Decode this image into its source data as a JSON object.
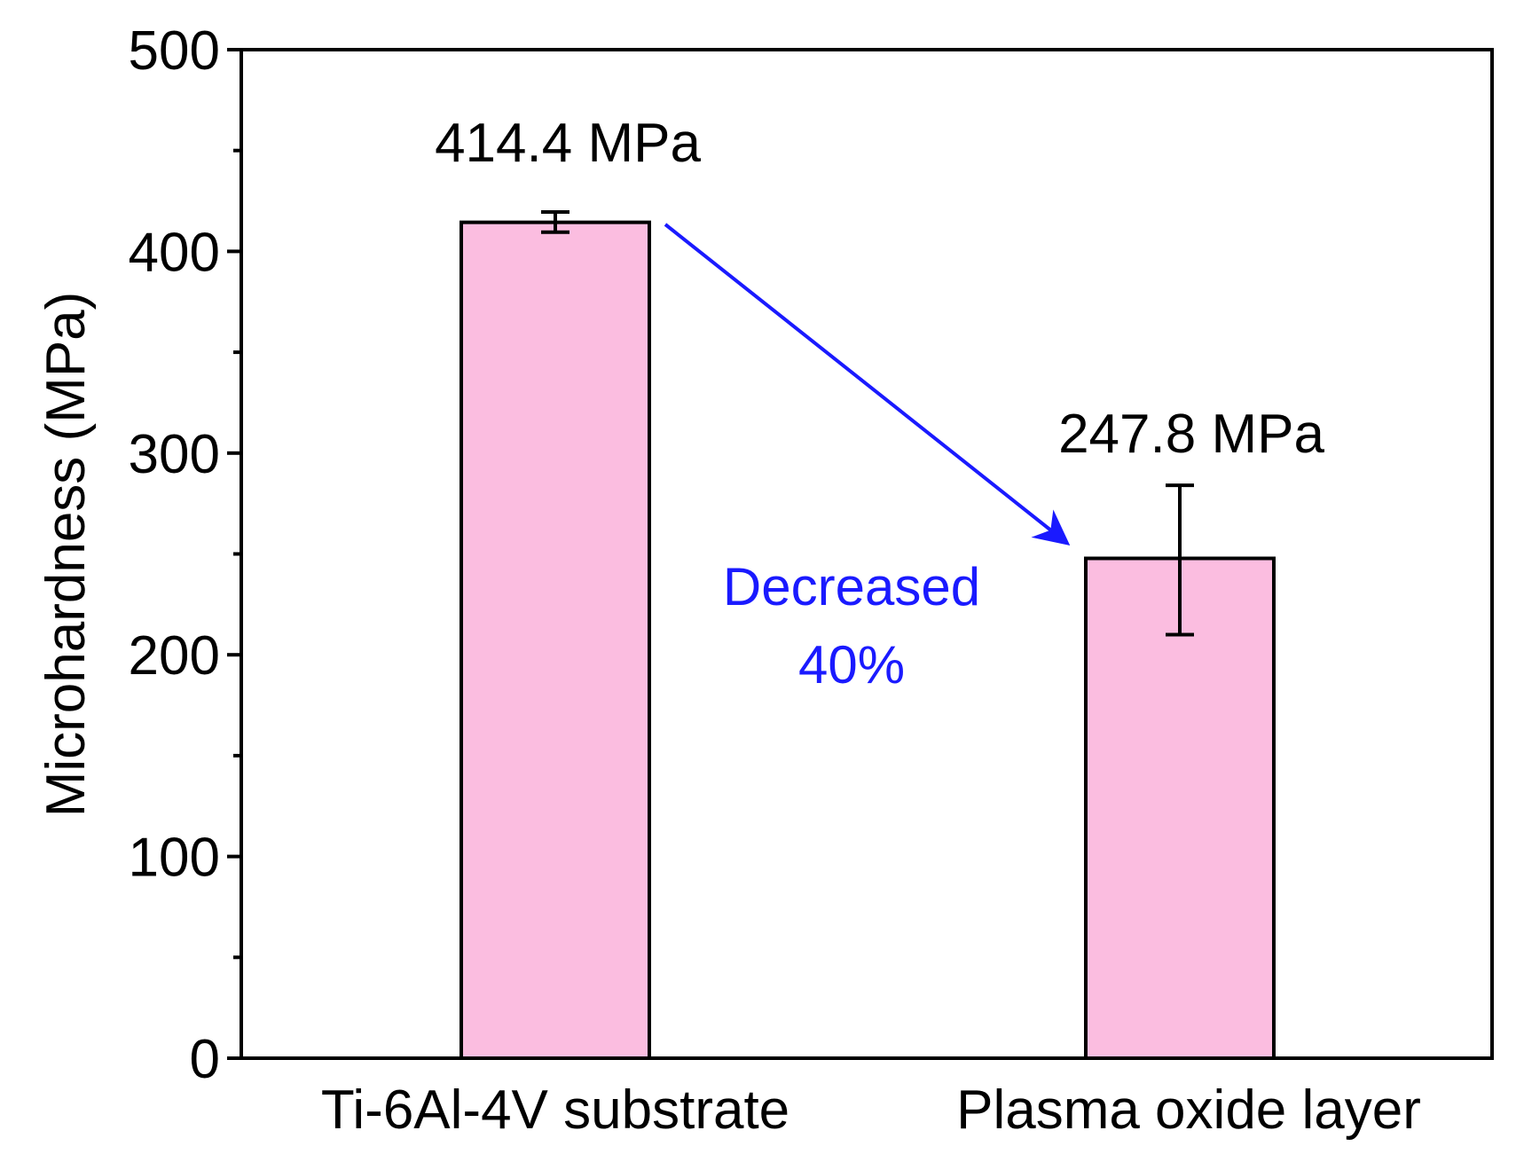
{
  "chart_data": {
    "type": "bar",
    "categories": [
      "Ti-6Al-4V substrate",
      "Plasma oxide layer"
    ],
    "values": [
      414.4,
      247.8
    ],
    "error_bars": [
      [
        409.5,
        419.5
      ],
      [
        210,
        284
      ]
    ],
    "ylabel": "Microhardness (MPa)",
    "xlabel": "",
    "ylim": [
      0,
      500
    ],
    "yticks": [
      "0",
      "100",
      "200",
      "300",
      "400",
      "500"
    ],
    "value_labels": [
      "414.4 MPa",
      "247.8 MPa"
    ],
    "annotation": {
      "line1": "Decreased",
      "line2": "40%"
    },
    "bar_color": "#fbbde0",
    "arrow_color": "#1a1aff",
    "annotation_color": "#1a1aff",
    "grid": false
  }
}
